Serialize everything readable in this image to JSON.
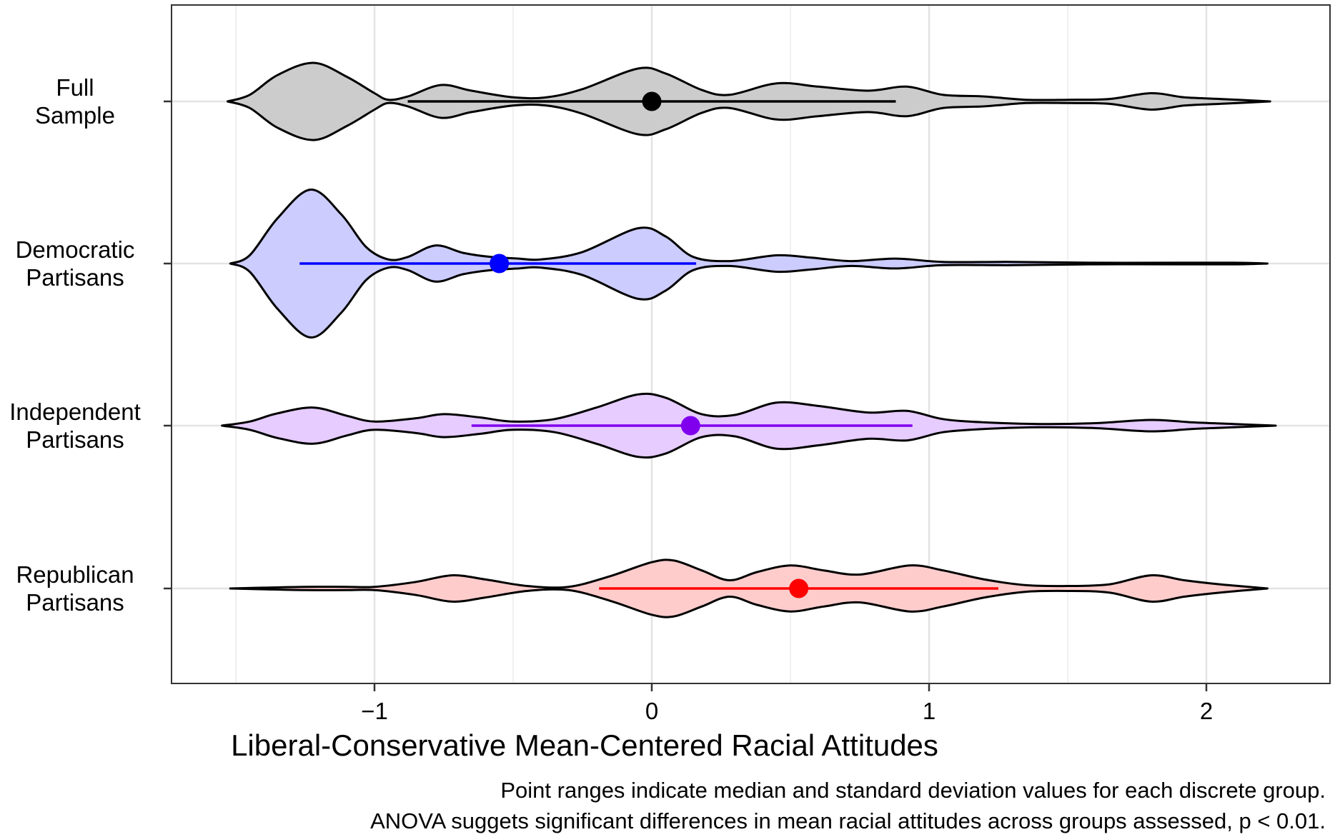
{
  "chart_data": {
    "type": "violin",
    "xlabel": "Liberal-Conservative Mean-Centered Racial Attitudes",
    "xlim": [
      -1.75,
      2.45
    ],
    "x_ticks": [
      -1,
      0,
      1,
      2
    ],
    "x_tick_labels": [
      "−1",
      "0",
      "1",
      "2"
    ],
    "grid": true,
    "caption": [
      "Point ranges indicate median and standard deviation values for each discrete group.",
      "ANOVA suggets significant differences in mean racial attitudes across groups assessed, p < 0.01."
    ],
    "groups": [
      {
        "label_lines": [
          "Full",
          "Sample"
        ],
        "fill": "#cccccc",
        "point_color": "#000000",
        "median": 0.0,
        "range": [
          -0.88,
          0.88
        ],
        "x_extent": [
          -1.53,
          2.23
        ],
        "density": [
          [
            -1.53,
            0.0
          ],
          [
            -1.45,
            0.08
          ],
          [
            -1.35,
            0.32
          ],
          [
            -1.22,
            0.47
          ],
          [
            -1.1,
            0.3
          ],
          [
            -1.0,
            0.1
          ],
          [
            -0.95,
            0.02
          ],
          [
            -0.88,
            0.06
          ],
          [
            -0.76,
            0.2
          ],
          [
            -0.65,
            0.13
          ],
          [
            -0.5,
            0.05
          ],
          [
            -0.38,
            0.05
          ],
          [
            -0.25,
            0.15
          ],
          [
            -0.05,
            0.4
          ],
          [
            0.05,
            0.34
          ],
          [
            0.18,
            0.14
          ],
          [
            0.28,
            0.08
          ],
          [
            0.45,
            0.22
          ],
          [
            0.6,
            0.18
          ],
          [
            0.78,
            0.13
          ],
          [
            0.92,
            0.18
          ],
          [
            1.05,
            0.08
          ],
          [
            1.2,
            0.06
          ],
          [
            1.35,
            0.02
          ],
          [
            1.5,
            0.02
          ],
          [
            1.65,
            0.03
          ],
          [
            1.8,
            0.1
          ],
          [
            1.92,
            0.05
          ],
          [
            2.05,
            0.03
          ],
          [
            2.23,
            0.0
          ]
        ]
      },
      {
        "label_lines": [
          "Democratic",
          "Partisans"
        ],
        "fill": "#ccccff",
        "point_color": "#0000ff",
        "median": -0.55,
        "range": [
          -1.27,
          0.16
        ],
        "x_extent": [
          -1.52,
          2.22
        ],
        "density": [
          [
            -1.52,
            0.0
          ],
          [
            -1.45,
            0.1
          ],
          [
            -1.35,
            0.55
          ],
          [
            -1.23,
            0.9
          ],
          [
            -1.12,
            0.6
          ],
          [
            -1.03,
            0.2
          ],
          [
            -0.95,
            0.05
          ],
          [
            -0.88,
            0.08
          ],
          [
            -0.78,
            0.22
          ],
          [
            -0.68,
            0.13
          ],
          [
            -0.58,
            0.08
          ],
          [
            -0.48,
            0.06
          ],
          [
            -0.4,
            0.05
          ],
          [
            -0.25,
            0.14
          ],
          [
            -0.05,
            0.43
          ],
          [
            0.05,
            0.33
          ],
          [
            0.15,
            0.08
          ],
          [
            0.28,
            0.03
          ],
          [
            0.45,
            0.1
          ],
          [
            0.58,
            0.07
          ],
          [
            0.72,
            0.03
          ],
          [
            0.88,
            0.06
          ],
          [
            1.05,
            0.02
          ],
          [
            1.3,
            0.02
          ],
          [
            1.6,
            0.01
          ],
          [
            1.9,
            0.01
          ],
          [
            2.1,
            0.01
          ],
          [
            2.22,
            0.0
          ]
        ]
      },
      {
        "label_lines": [
          "Independent",
          "Partisans"
        ],
        "fill": "#e6ccff",
        "point_color": "#8000ee",
        "median": 0.14,
        "range": [
          -0.65,
          0.94
        ],
        "x_extent": [
          -1.55,
          2.25
        ],
        "density": [
          [
            -1.55,
            0.0
          ],
          [
            -1.45,
            0.05
          ],
          [
            -1.35,
            0.15
          ],
          [
            -1.22,
            0.22
          ],
          [
            -1.1,
            0.12
          ],
          [
            -1.0,
            0.05
          ],
          [
            -0.85,
            0.09
          ],
          [
            -0.75,
            0.14
          ],
          [
            -0.62,
            0.1
          ],
          [
            -0.5,
            0.05
          ],
          [
            -0.35,
            0.08
          ],
          [
            -0.2,
            0.22
          ],
          [
            -0.05,
            0.38
          ],
          [
            0.05,
            0.34
          ],
          [
            0.18,
            0.14
          ],
          [
            0.3,
            0.13
          ],
          [
            0.45,
            0.28
          ],
          [
            0.6,
            0.24
          ],
          [
            0.78,
            0.16
          ],
          [
            0.92,
            0.18
          ],
          [
            1.05,
            0.08
          ],
          [
            1.2,
            0.04
          ],
          [
            1.4,
            0.02
          ],
          [
            1.6,
            0.03
          ],
          [
            1.8,
            0.07
          ],
          [
            1.95,
            0.04
          ],
          [
            2.1,
            0.02
          ],
          [
            2.25,
            0.0
          ]
        ]
      },
      {
        "label_lines": [
          "Republican",
          "Partisans"
        ],
        "fill": "#ffcccc",
        "point_color": "#ff0000",
        "median": 0.53,
        "range": [
          -0.19,
          1.25
        ],
        "x_extent": [
          -1.52,
          2.22
        ],
        "density": [
          [
            -1.52,
            0.0
          ],
          [
            -1.4,
            0.01
          ],
          [
            -1.25,
            0.02
          ],
          [
            -1.1,
            0.02
          ],
          [
            -1.0,
            0.02
          ],
          [
            -0.85,
            0.08
          ],
          [
            -0.72,
            0.16
          ],
          [
            -0.6,
            0.11
          ],
          [
            -0.45,
            0.03
          ],
          [
            -0.3,
            0.02
          ],
          [
            -0.15,
            0.15
          ],
          [
            0.0,
            0.32
          ],
          [
            0.08,
            0.34
          ],
          [
            0.18,
            0.22
          ],
          [
            0.28,
            0.1
          ],
          [
            0.38,
            0.2
          ],
          [
            0.5,
            0.28
          ],
          [
            0.62,
            0.22
          ],
          [
            0.75,
            0.17
          ],
          [
            0.93,
            0.28
          ],
          [
            1.05,
            0.22
          ],
          [
            1.2,
            0.11
          ],
          [
            1.35,
            0.04
          ],
          [
            1.5,
            0.03
          ],
          [
            1.65,
            0.05
          ],
          [
            1.8,
            0.16
          ],
          [
            1.92,
            0.1
          ],
          [
            2.05,
            0.05
          ],
          [
            2.22,
            0.0
          ]
        ]
      }
    ]
  }
}
